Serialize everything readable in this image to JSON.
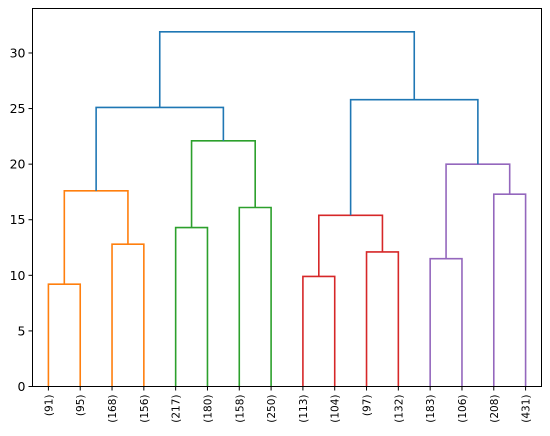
{
  "chart_data": {
    "type": "dendrogram",
    "ylim": [
      0,
      34
    ],
    "yticks": [
      0,
      5,
      10,
      15,
      20,
      25,
      30
    ],
    "ytick_labels": [
      "0",
      "5",
      "10",
      "15",
      "20",
      "25",
      "30"
    ],
    "leaf_labels": [
      "(91)",
      "(95)",
      "(168)",
      "(156)",
      "(217)",
      "(180)",
      "(158)",
      "(250)",
      "(113)",
      "(104)",
      "(97)",
      "(132)",
      "(183)",
      "(106)",
      "(208)",
      "(431)"
    ],
    "merges": [
      {
        "left": "L0",
        "right": "L1",
        "height": 9.2,
        "color": "#ff7f0e"
      },
      {
        "left": "L2",
        "right": "L3",
        "height": 12.8,
        "color": "#ff7f0e"
      },
      {
        "left": "M0",
        "right": "M1",
        "height": 17.6,
        "color": "#ff7f0e"
      },
      {
        "left": "L4",
        "right": "L5",
        "height": 14.3,
        "color": "#2ca02c"
      },
      {
        "left": "L6",
        "right": "L7",
        "height": 16.1,
        "color": "#2ca02c"
      },
      {
        "left": "M3",
        "right": "M4",
        "height": 22.1,
        "color": "#2ca02c"
      },
      {
        "left": "L8",
        "right": "L9",
        "height": 9.9,
        "color": "#d62728"
      },
      {
        "left": "L10",
        "right": "L11",
        "height": 12.1,
        "color": "#d62728"
      },
      {
        "left": "M6",
        "right": "M7",
        "height": 15.4,
        "color": "#d62728"
      },
      {
        "left": "L12",
        "right": "L13",
        "height": 11.5,
        "color": "#9467bd"
      },
      {
        "left": "L14",
        "right": "L15",
        "height": 17.3,
        "color": "#9467bd"
      },
      {
        "left": "M9",
        "right": "M10",
        "height": 20.0,
        "color": "#9467bd"
      },
      {
        "left": "M2",
        "right": "M5",
        "height": 25.1,
        "color": "#1f77b4"
      },
      {
        "left": "M8",
        "right": "M11",
        "height": 25.8,
        "color": "#1f77b4"
      },
      {
        "left": "M12",
        "right": "M13",
        "height": 31.9,
        "color": "#1f77b4"
      }
    ]
  }
}
